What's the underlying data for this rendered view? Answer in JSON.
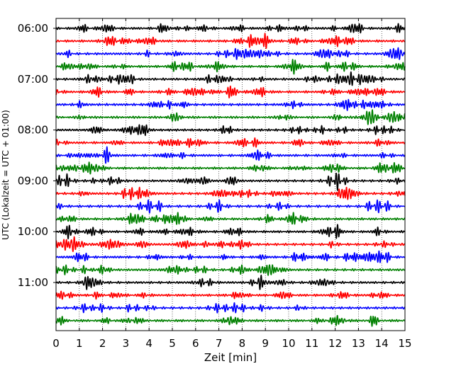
{
  "chart_data": {
    "type": "line",
    "title": "",
    "xlabel": "Zeit  [min]",
    "ylabel": "UTC (Lokalzeit = UTC + 01:00)",
    "xlim": [
      0,
      15
    ],
    "x_ticks": [
      "0",
      "1",
      "2",
      "3",
      "4",
      "5",
      "6",
      "7",
      "8",
      "9",
      "10",
      "11",
      "12",
      "13",
      "14",
      "15"
    ],
    "y_ticks": [
      "06:00",
      "07:00",
      "08:00",
      "09:00",
      "10:00",
      "11:00"
    ],
    "grid": "vertical dotted lines at each minute",
    "trace_count": 24,
    "trace_colors": [
      "#000000",
      "#ff0000",
      "#0000ff",
      "#008000"
    ],
    "trace_start_times": [
      "06:00",
      "06:15",
      "06:30",
      "06:45",
      "07:00",
      "07:15",
      "07:30",
      "07:45",
      "08:00",
      "08:15",
      "08:30",
      "08:45",
      "09:00",
      "09:15",
      "09:30",
      "09:45",
      "10:00",
      "10:15",
      "10:30",
      "10:45",
      "11:00",
      "11:15",
      "11:30",
      "11:45"
    ]
  }
}
